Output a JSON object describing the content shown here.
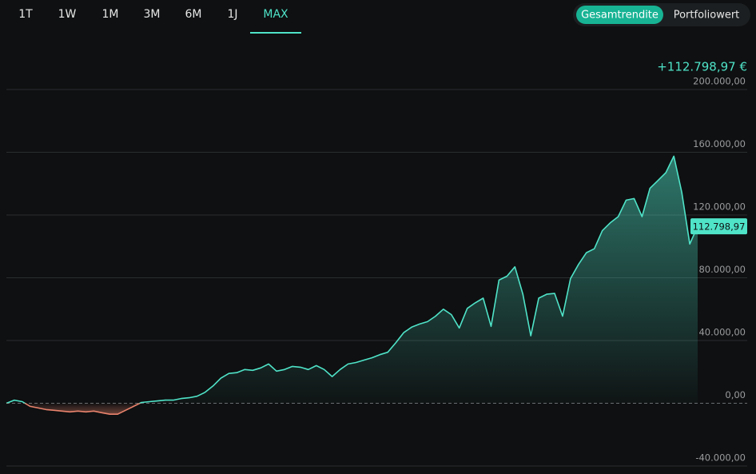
{
  "tabs": [
    "1T",
    "1W",
    "1M",
    "3M",
    "6M",
    "1J",
    "MAX"
  ],
  "active_tab_index": 6,
  "toggle": [
    "Gesamtrendite",
    "Portfoliowert"
  ],
  "active_toggle_index": 0,
  "chart_data": {
    "type": "line",
    "headline": "+112.798,97 €",
    "ylim": [
      -40000,
      200000
    ],
    "yticks": [
      {
        "value": -40000,
        "label": "-40.000,00"
      },
      {
        "value": 0,
        "label": "0,00"
      },
      {
        "value": 40000,
        "label": "40.000,00"
      },
      {
        "value": 80000,
        "label": "80.000,00"
      },
      {
        "value": 120000,
        "label": "120.000,00"
      },
      {
        "value": 160000,
        "label": "160.000,00"
      },
      {
        "value": 200000,
        "label": "200.000,00"
      }
    ],
    "grid": true,
    "color": "#4fe3c8",
    "negative_color": "#e8826c",
    "values": [
      0,
      2000,
      1000,
      -2000,
      -3000,
      -4000,
      -4500,
      -5000,
      -5500,
      -5000,
      -5500,
      -5000,
      -6000,
      -7000,
      -7000,
      -4500,
      -2000,
      500,
      1000,
      1500,
      2000,
      2000,
      3000,
      3500,
      4500,
      7000,
      11000,
      16000,
      19000,
      19500,
      21500,
      21000,
      22500,
      25000,
      20500,
      21500,
      23500,
      23000,
      21500,
      24000,
      21500,
      17000,
      21500,
      25000,
      26000,
      27500,
      29000,
      31000,
      32500,
      38500,
      45000,
      48500,
      50500,
      52000,
      55500,
      60000,
      56500,
      48000,
      60500,
      64000,
      67000,
      49000,
      78500,
      81000,
      87000,
      69500,
      43000,
      67000,
      69500,
      70000,
      55500,
      79500,
      88500,
      96000,
      98500,
      110000,
      115000,
      119000,
      129500,
      130500,
      119000,
      137000,
      142000,
      147000,
      157500,
      134500,
      101500,
      112798.97
    ],
    "value_labels": [
      null,
      null,
      null,
      null,
      null,
      null,
      null,
      null,
      null,
      null,
      null,
      null,
      null,
      null,
      null,
      null,
      null,
      null,
      null,
      null,
      null,
      null,
      null,
      null,
      null,
      null,
      null,
      null,
      null,
      null,
      null,
      null,
      null,
      null,
      null,
      null,
      null,
      null,
      null,
      null,
      null,
      null,
      null,
      null,
      null,
      null,
      null,
      null,
      null,
      null,
      null,
      null,
      null,
      null,
      null,
      null,
      null,
      null,
      null,
      null,
      null,
      null,
      null,
      null,
      null,
      null,
      null,
      null,
      null,
      null,
      null,
      null,
      null,
      null,
      null,
      null,
      null,
      null,
      null,
      null,
      null,
      null,
      null,
      null,
      null,
      null,
      null,
      "112.798,97"
    ]
  }
}
